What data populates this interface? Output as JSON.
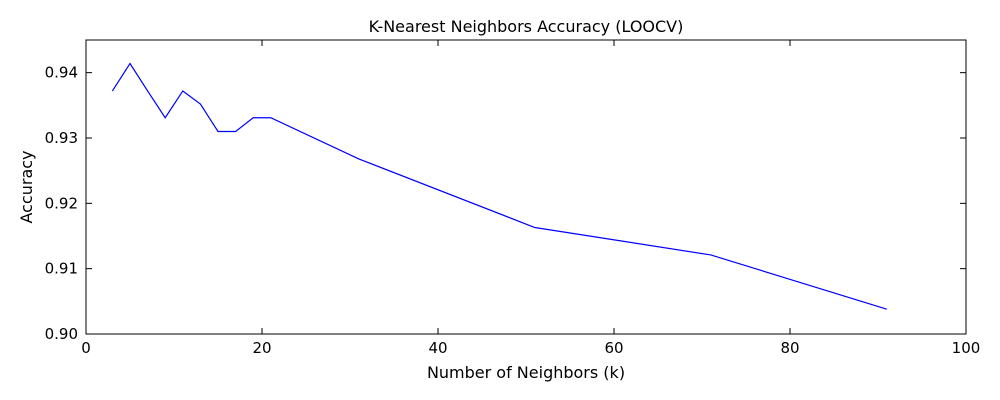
{
  "chart_data": {
    "type": "line",
    "title": "K-Nearest Neighbors Accuracy (LOOCV)",
    "xlabel": "Number of Neighbors (k)",
    "ylabel": "Accuracy",
    "xlim": [
      0,
      100
    ],
    "ylim": [
      0.9,
      0.945
    ],
    "x_ticks": [
      0,
      20,
      40,
      60,
      80,
      100
    ],
    "y_ticks": [
      0.9,
      0.91,
      0.92,
      0.93,
      0.94
    ],
    "x_tick_labels": [
      "0",
      "20",
      "40",
      "60",
      "80",
      "100"
    ],
    "y_tick_labels": [
      "0.90",
      "0.91",
      "0.92",
      "0.93",
      "0.94"
    ],
    "grid": false,
    "series": [
      {
        "color": "#0000ff",
        "x": [
          3,
          5,
          7,
          9,
          11,
          13,
          15,
          17,
          19,
          21,
          31,
          51,
          71,
          91
        ],
        "y": [
          0.9372,
          0.9414,
          0.9372,
          0.9331,
          0.9372,
          0.9352,
          0.931,
          0.931,
          0.9331,
          0.9331,
          0.9268,
          0.9163,
          0.9121,
          0.9038
        ]
      }
    ]
  }
}
